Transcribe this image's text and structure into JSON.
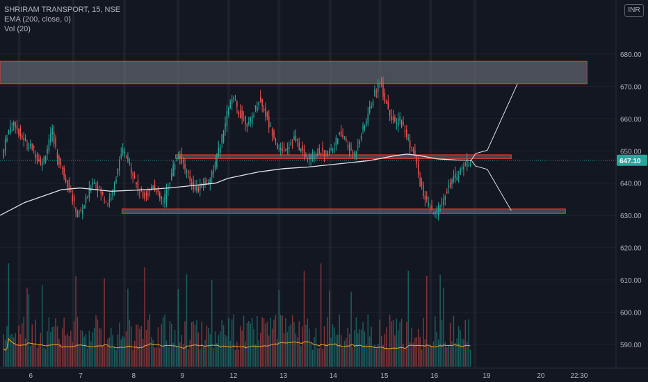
{
  "legend": {
    "symbol_line": "SHRIRAM TRANSPORT, 15, NSE",
    "ema_line": "EMA (200, close, 0)",
    "vol_line": "Vol (20)"
  },
  "currency_button": "INR",
  "colors": {
    "background": "#131722",
    "up": "#26a69a",
    "down": "#ef5350",
    "ema": "#e0e3eb",
    "vol_ma": "#f5a623",
    "zone_border": "#e53935",
    "price_badge": "#26a69a"
  },
  "chart_data": {
    "type": "candlestick",
    "price_axis": {
      "min": 582,
      "max": 694,
      "ticks": [
        "680.00",
        "670.00",
        "660.00",
        "650.00",
        "640.00",
        "630.00",
        "620.00",
        "610.00",
        "600.00",
        "590.00"
      ],
      "tick_values": [
        680,
        670,
        660,
        650,
        640,
        630,
        620,
        610,
        600,
        590
      ]
    },
    "last_price": {
      "label": "647.10",
      "value": 647.1
    },
    "time_axis": {
      "labels": [
        "6",
        "7",
        "8",
        "9",
        "12",
        "13",
        "14",
        "15",
        "16",
        "19",
        "20",
        "22:30"
      ],
      "positions": [
        0.05,
        0.131,
        0.217,
        0.296,
        0.379,
        0.46,
        0.541,
        0.624,
        0.705,
        0.79,
        0.878,
        0.94
      ]
    },
    "session_bounds": [
      0.031,
      0.119,
      0.202,
      0.289,
      0.371,
      0.453,
      0.536,
      0.617,
      0.699,
      0.771
    ],
    "price_path": [
      648,
      655,
      659,
      657,
      654,
      652,
      651,
      648,
      646,
      651,
      656,
      648,
      644,
      640,
      635,
      630,
      632,
      636,
      641,
      639,
      636,
      634,
      637,
      645,
      650,
      647,
      643,
      638,
      636,
      637,
      640,
      636,
      634,
      639,
      645,
      649,
      646,
      642,
      639,
      638,
      640,
      641,
      644,
      650,
      656,
      664,
      666,
      662,
      660,
      658,
      662,
      666,
      663,
      658,
      655,
      650,
      651,
      652,
      654,
      651,
      649,
      648,
      649,
      650,
      649,
      650,
      652,
      655,
      654,
      650,
      649,
      654,
      658,
      663,
      668,
      672,
      666,
      662,
      658,
      660,
      656,
      652,
      648,
      640,
      635,
      632,
      630,
      633,
      637,
      640,
      642,
      644,
      646,
      647.1
    ],
    "ema_points": [
      [
        0.0,
        630
      ],
      [
        0.04,
        634
      ],
      [
        0.1,
        638
      ],
      [
        0.13,
        638.5
      ],
      [
        0.18,
        637.5
      ],
      [
        0.22,
        637.8
      ],
      [
        0.26,
        638.3
      ],
      [
        0.3,
        639
      ],
      [
        0.35,
        640
      ],
      [
        0.37,
        641.5
      ],
      [
        0.42,
        643.5
      ],
      [
        0.46,
        644.5
      ],
      [
        0.5,
        645
      ],
      [
        0.55,
        646
      ],
      [
        0.6,
        647
      ],
      [
        0.64,
        648.5
      ],
      [
        0.66,
        649
      ],
      [
        0.68,
        648.6
      ],
      [
        0.71,
        647.5
      ],
      [
        0.74,
        647.2
      ],
      [
        0.765,
        647.1
      ]
    ],
    "zones": [
      {
        "x0": 0.0,
        "x1": 0.953,
        "y_low": 670.8,
        "y_high": 677.8,
        "style": "filled"
      },
      {
        "x0": 0.285,
        "x1": 0.83,
        "y_low": 647.6,
        "y_high": 648.8,
        "style": "band"
      },
      {
        "x0": 0.198,
        "x1": 0.918,
        "y_low": 630.6,
        "y_high": 632.0,
        "style": "band"
      }
    ],
    "projections": [
      [
        [
          0.765,
          647.1
        ],
        [
          0.772,
          649.2
        ],
        [
          0.791,
          650.2
        ],
        [
          0.84,
          670.8
        ]
      ],
      [
        [
          0.765,
          647.1
        ],
        [
          0.772,
          645.3
        ],
        [
          0.791,
          644.3
        ],
        [
          0.83,
          631.5
        ]
      ]
    ],
    "volume_scale": 1.0
  }
}
